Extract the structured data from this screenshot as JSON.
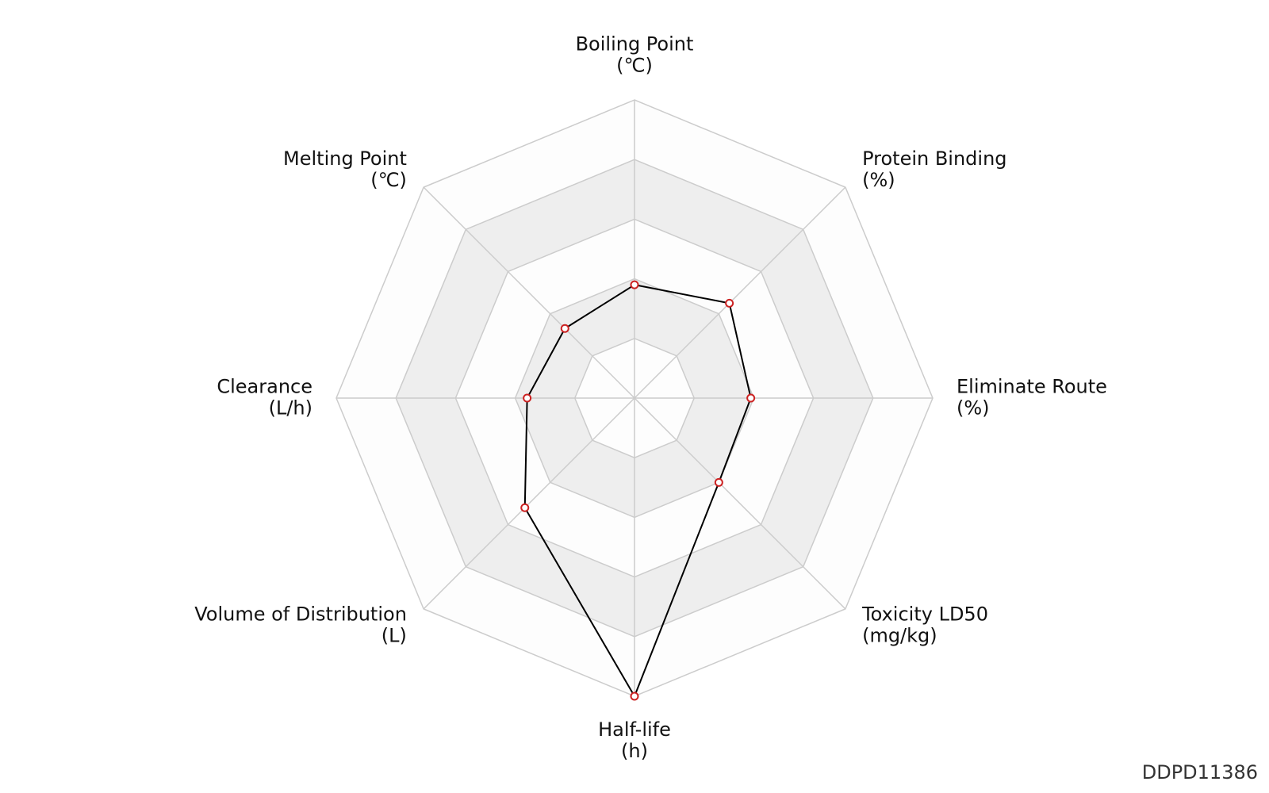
{
  "chart_data": {
    "type": "radar",
    "axes": [
      {
        "name": "Boiling Point",
        "unit": "(℃)",
        "value": 0.38
      },
      {
        "name": "Protein Binding",
        "unit": "(%)",
        "value": 0.45
      },
      {
        "name": "Eliminate Route",
        "unit": "(%)",
        "value": 0.39
      },
      {
        "name": "Toxicity LD50",
        "unit": "(mg/kg)",
        "value": 0.4
      },
      {
        "name": "Half-life",
        "unit": "(h)",
        "value": 1.0
      },
      {
        "name": "Volume of Distribution",
        "unit": "(L)",
        "value": 0.52
      },
      {
        "name": "Clearance",
        "unit": "(L/h)",
        "value": 0.36
      },
      {
        "name": "Melting Point",
        "unit": "(℃)",
        "value": 0.33
      }
    ],
    "range": [
      0,
      1
    ],
    "rings": 5,
    "grid": true,
    "colors": {
      "line": "#000000",
      "marker_edge": "#cc2222",
      "marker_fill": "#ffffff",
      "grid": "#cccccc",
      "band_shaded": "#eeeeee",
      "band_light": "#fdfdfd"
    }
  },
  "id_label": "DDPD11386"
}
